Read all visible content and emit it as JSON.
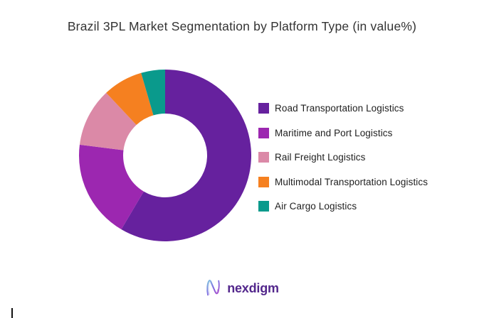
{
  "title": "Brazil 3PL Market Segmentation by Platform Type (in value%)",
  "chart_data": {
    "type": "pie",
    "subtype": "donut",
    "title": "Brazil 3PL Market Segmentation by Platform Type (in value%)",
    "unit": "value %",
    "direction": "clockwise",
    "start_angle_deg": 0,
    "inner_radius_ratio": 0.49,
    "legend_position": "right",
    "data_labels": false,
    "series": [
      {
        "name": "Road Transportation Logistics",
        "value": 58.5,
        "color": "#66219E"
      },
      {
        "name": "Maritime and Port Logistics",
        "value": 18.5,
        "color": "#9C27B0"
      },
      {
        "name": "Rail Freight Logistics",
        "value": 11.0,
        "color": "#DB89A7"
      },
      {
        "name": "Multimodal Transportation Logistics",
        "value": 7.5,
        "color": "#F58020"
      },
      {
        "name": "Air Cargo Logistics",
        "value": 4.5,
        "color": "#0A9A8C"
      }
    ]
  },
  "logo": {
    "text": "nexdigm"
  }
}
